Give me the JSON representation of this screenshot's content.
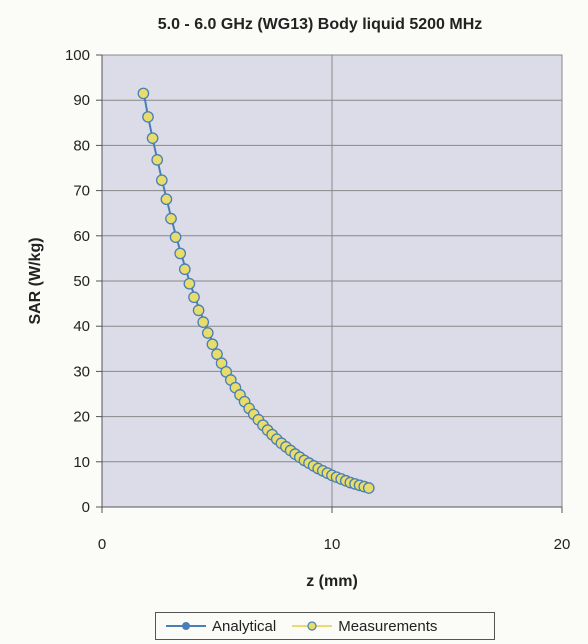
{
  "chart_data": {
    "type": "scatter",
    "title": "5.0 - 6.0 GHz (WG13) Body liquid 5200 MHz",
    "xlabel": "z (mm)",
    "ylabel": "SAR (W/kg)",
    "xlim": [
      0,
      20
    ],
    "ylim": [
      0,
      100
    ],
    "x_ticks": [
      "0",
      "10",
      "20"
    ],
    "y_ticks": [
      "0",
      "10",
      "20",
      "30",
      "40",
      "50",
      "60",
      "70",
      "80",
      "90",
      "100"
    ],
    "grid": true,
    "legend_position": "bottom",
    "series": [
      {
        "name": "Analytical",
        "color": "#4a7fb5",
        "marker": "line",
        "x": [
          1.8,
          2.0,
          2.2,
          2.4,
          2.6,
          2.8,
          3.0,
          3.2,
          3.4,
          3.6,
          3.8,
          4.0,
          4.2,
          4.4,
          4.6,
          4.8,
          5.0,
          5.2,
          5.4,
          5.6,
          5.8,
          6.0,
          6.2,
          6.4,
          6.6,
          6.8,
          7.0,
          7.2,
          7.4,
          7.6,
          7.8,
          8.0,
          8.2,
          8.4,
          8.6,
          8.8,
          9.0,
          9.2,
          9.4,
          9.6,
          9.8,
          10.0,
          10.2,
          10.4,
          10.6,
          10.8,
          11.0,
          11.2,
          11.4,
          11.6
        ],
        "y": [
          92,
          86.5,
          81.5,
          77,
          72.5,
          68.3,
          64.2,
          60.3,
          56.7,
          53.3,
          50.0,
          47.0,
          44.2,
          41.5,
          39.0,
          36.6,
          34.4,
          32.3,
          30.3,
          28.5,
          26.7,
          25.1,
          23.6,
          22.1,
          20.8,
          19.5,
          18.3,
          17.2,
          16.2,
          15.2,
          14.3,
          13.4,
          12.6,
          11.8,
          11.1,
          10.4,
          9.8,
          9.2,
          8.6,
          8.1,
          7.6,
          7.1,
          6.7,
          6.3,
          5.9,
          5.5,
          5.2,
          4.9,
          4.6,
          4.3
        ]
      },
      {
        "name": "Measurements",
        "color": "#e8dc6a",
        "marker": "circle",
        "x": [
          1.8,
          2.0,
          2.2,
          2.4,
          2.6,
          2.8,
          3.0,
          3.2,
          3.4,
          3.6,
          3.8,
          4.0,
          4.2,
          4.4,
          4.6,
          4.8,
          5.0,
          5.2,
          5.4,
          5.6,
          5.8,
          6.0,
          6.2,
          6.4,
          6.6,
          6.8,
          7.0,
          7.2,
          7.4,
          7.6,
          7.8,
          8.0,
          8.2,
          8.4,
          8.6,
          8.8,
          9.0,
          9.2,
          9.4,
          9.6,
          9.8,
          10.0,
          10.2,
          10.4,
          10.6,
          10.8,
          11.0,
          11.2,
          11.4,
          11.6
        ],
        "y": [
          91.5,
          86.3,
          81.6,
          76.8,
          72.3,
          68.1,
          63.8,
          59.7,
          56.1,
          52.6,
          49.4,
          46.4,
          43.5,
          40.9,
          38.5,
          36.0,
          33.8,
          31.8,
          29.9,
          28.1,
          26.4,
          24.8,
          23.3,
          21.8,
          20.5,
          19.3,
          18.1,
          17.0,
          16.0,
          15.0,
          14.1,
          13.3,
          12.5,
          11.7,
          11.0,
          10.3,
          9.7,
          9.1,
          8.5,
          8.0,
          7.5,
          7.0,
          6.6,
          6.2,
          5.8,
          5.4,
          5.1,
          4.8,
          4.5,
          4.2
        ]
      }
    ]
  }
}
